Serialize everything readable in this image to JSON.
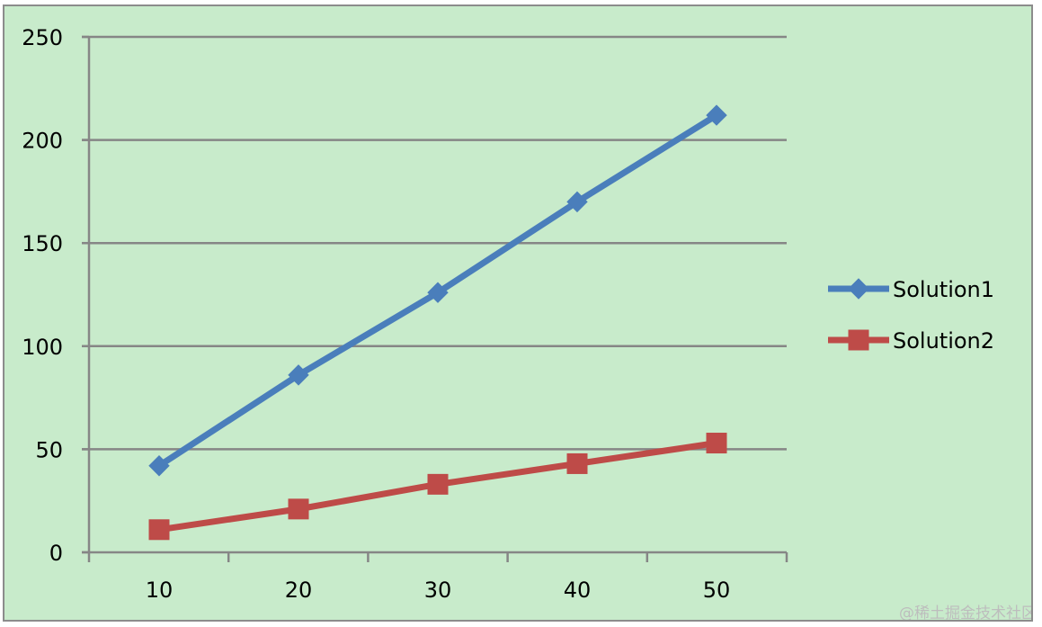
{
  "chart_data": {
    "type": "line",
    "title": "",
    "xlabel": "",
    "ylabel": "",
    "categories": [
      "10",
      "20",
      "30",
      "40",
      "50"
    ],
    "x": [
      10,
      20,
      30,
      40,
      50
    ],
    "ylim": [
      0,
      250
    ],
    "yticks": [
      0,
      50,
      100,
      150,
      200,
      250
    ],
    "grid": "horizontal",
    "legend_position": "right",
    "background_color": "#c8ebcb",
    "gridline_color": "#868686",
    "series": [
      {
        "name": "Solution1",
        "values": [
          42,
          86,
          126,
          170,
          212
        ],
        "color": "#4a7ebb",
        "marker": "diamond"
      },
      {
        "name": "Solution2",
        "values": [
          11,
          21,
          33,
          43,
          53
        ],
        "color": "#be4b48",
        "marker": "square"
      }
    ]
  },
  "watermark": "@稀土掘金技术社区"
}
